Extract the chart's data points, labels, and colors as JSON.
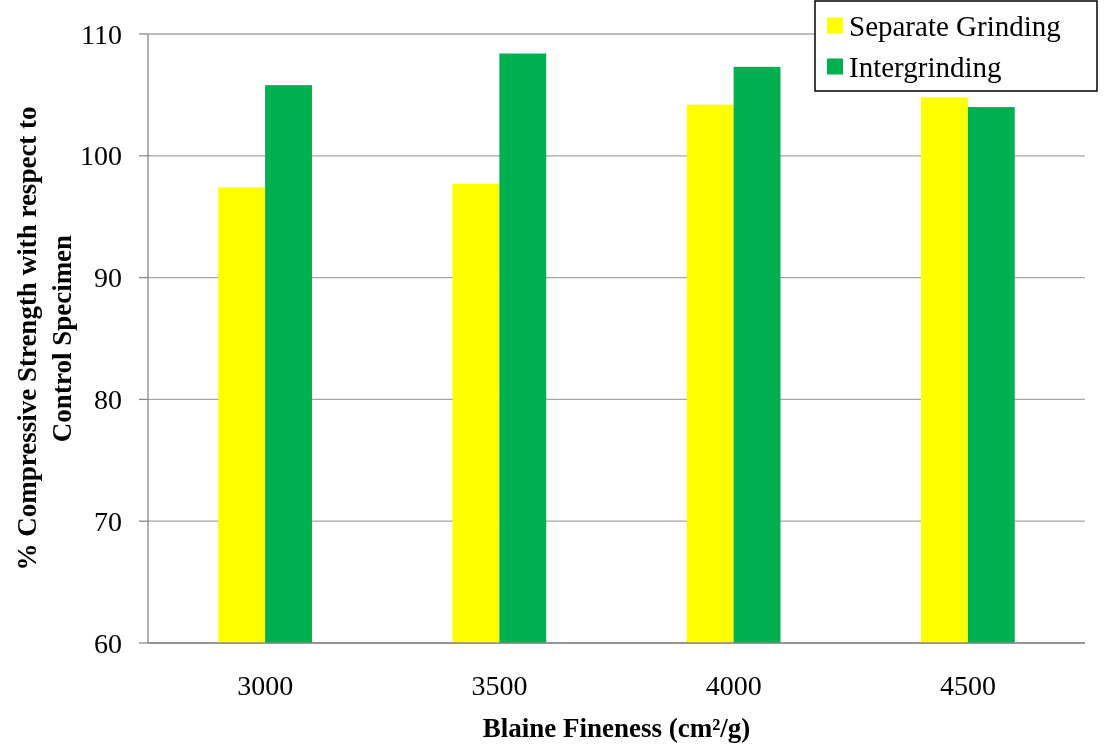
{
  "chart_data": {
    "type": "bar",
    "categories": [
      "3000",
      "3500",
      "4000",
      "4500"
    ],
    "series": [
      {
        "name": "Separate Grinding",
        "color": "#ffff00",
        "values": [
          97.4,
          97.7,
          104.2,
          104.8
        ]
      },
      {
        "name": "Intergrinding",
        "color": "#00b050",
        "values": [
          105.8,
          108.4,
          107.3,
          104.0
        ]
      }
    ],
    "xlabel": "Blaine Fineness (cm²/g)",
    "ylabel": "% Compressive Strength with respect to Control Specimen",
    "ylim": [
      60,
      110
    ],
    "yticks": [
      60,
      70,
      80,
      90,
      100,
      110
    ],
    "grid": "y",
    "legend": "top right"
  }
}
